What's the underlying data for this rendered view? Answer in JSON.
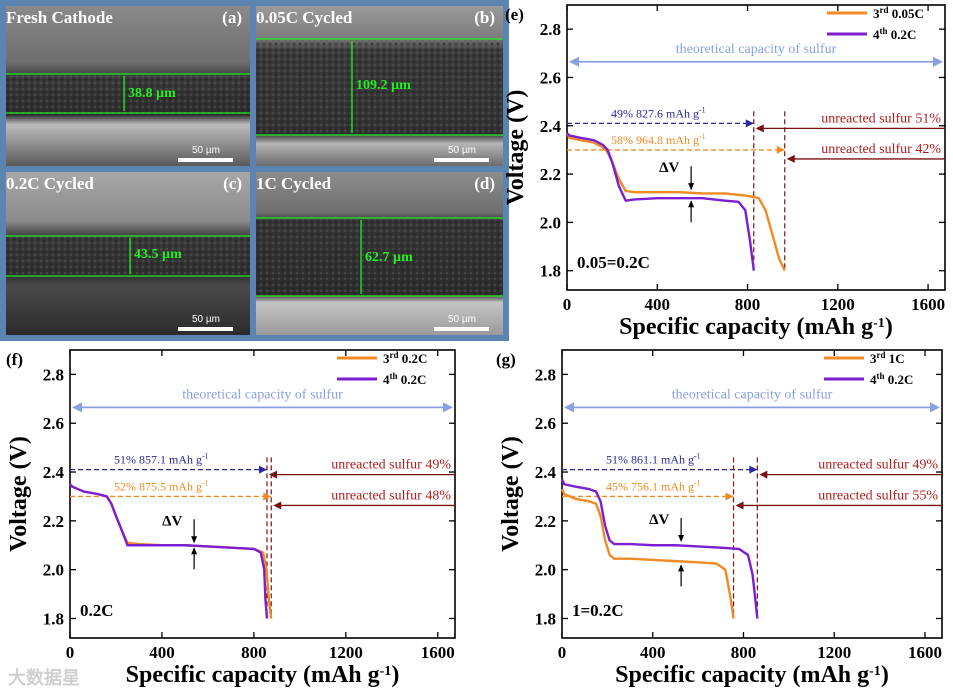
{
  "sem_panels": [
    {
      "id": "a",
      "label": "Fresh Cathode",
      "letter": "(a)",
      "thickness": "38.8 µm",
      "scale": "50 µm"
    },
    {
      "id": "b",
      "label": "0.05C Cycled",
      "letter": "(b)",
      "thickness": "109.2 µm",
      "scale": "50 µm"
    },
    {
      "id": "c",
      "label": "0.2C Cycled",
      "letter": "(c)",
      "thickness": "43.5 µm",
      "scale": "50 µm"
    },
    {
      "id": "d",
      "label": "1C Cycled",
      "letter": "(d)",
      "thickness": "62.7 µm",
      "scale": "50 µm"
    }
  ],
  "watermark": "大数据星",
  "colors": {
    "orange": "#f08a24",
    "purple": "#7b1fd1",
    "lavender": "#8aa0e0",
    "darkred": "#b01c1c",
    "blue": "#2a2aa0",
    "green": "#22ee22"
  },
  "chart_data": [
    {
      "panel": "(e)",
      "type": "line",
      "xlabel": "Specific capacity (mAh g",
      "xlabel_sup": "-1",
      "xlabel_end": ")",
      "ylabel": "Voltage (V)",
      "xlim": [
        0,
        1675
      ],
      "ylim": [
        1.72,
        2.9
      ],
      "xticks": [
        0,
        400,
        800,
        1200,
        1600
      ],
      "yticks": [
        1.8,
        2.0,
        2.2,
        2.4,
        2.6,
        2.8
      ],
      "rate_label": "0.05=0.2C",
      "legend": [
        {
          "cycle": "3",
          "sup": "rd",
          "rate": " 0.05C",
          "color": "#f08a24"
        },
        {
          "cycle": "4",
          "sup": "th",
          "rate": " 0.2C",
          "color": "#7b1fd1"
        }
      ],
      "theoretical_label": "theoretical capacity of sulfur",
      "theoretical_y": 2.665,
      "series": [
        {
          "name": "3rd 0.05C",
          "color": "#f08a24",
          "x": [
            0,
            10,
            60,
            120,
            160,
            180,
            200,
            230,
            260,
            300,
            400,
            500,
            600,
            700,
            800,
            850,
            880,
            910,
            940,
            965
          ],
          "y": [
            2.37,
            2.35,
            2.34,
            2.33,
            2.31,
            2.29,
            2.25,
            2.18,
            2.13,
            2.125,
            2.125,
            2.125,
            2.12,
            2.12,
            2.11,
            2.1,
            2.05,
            1.95,
            1.85,
            1.8
          ]
        },
        {
          "name": "4th 0.2C",
          "color": "#7b1fd1",
          "x": [
            0,
            10,
            60,
            120,
            160,
            180,
            200,
            230,
            260,
            300,
            400,
            500,
            600,
            700,
            760,
            790,
            810,
            828
          ],
          "y": [
            2.37,
            2.36,
            2.35,
            2.34,
            2.32,
            2.3,
            2.25,
            2.15,
            2.09,
            2.095,
            2.1,
            2.1,
            2.1,
            2.09,
            2.085,
            2.05,
            1.93,
            1.8
          ]
        }
      ],
      "ref_lines": [
        {
          "pct": "49%",
          "cap": "827.6 mAh g",
          "sup": "-1",
          "color": "#2a2aa0",
          "y": 2.41,
          "x_end": 827.6,
          "unreacted": "unreacted sulfur  51%"
        },
        {
          "pct": "58%",
          "cap": "964.8 mAh g",
          "sup": "-1",
          "color": "#f08a24",
          "y": 2.3,
          "x_end": 964.8,
          "unreacted": "unreacted sulfur  42%"
        }
      ],
      "delta_v": "ΔV",
      "delta_x": 550,
      "delta_top": 2.125,
      "delta_bot": 2.1
    },
    {
      "panel": "(f)",
      "type": "line",
      "xlabel": "Specific capacity (mAh g",
      "xlabel_sup": "-1",
      "xlabel_end": ")",
      "ylabel": "Voltage (V)",
      "xlim": [
        0,
        1675
      ],
      "ylim": [
        1.72,
        2.9
      ],
      "xticks": [
        0,
        400,
        800,
        1200,
        1600
      ],
      "yticks": [
        1.8,
        2.0,
        2.2,
        2.4,
        2.6,
        2.8
      ],
      "rate_label": "0.2C",
      "legend": [
        {
          "cycle": "3",
          "sup": "rd",
          "rate": " 0.2C",
          "color": "#f08a24"
        },
        {
          "cycle": "4",
          "sup": "th",
          "rate": " 0.2C",
          "color": "#7b1fd1"
        }
      ],
      "theoretical_label": "theoretical capacity of sulfur",
      "theoretical_y": 2.665,
      "series": [
        {
          "name": "3rd 0.2C",
          "color": "#f08a24",
          "x": [
            0,
            10,
            60,
            120,
            160,
            180,
            200,
            230,
            250,
            300,
            400,
            500,
            600,
            700,
            800,
            840,
            855,
            865,
            875
          ],
          "y": [
            2.35,
            2.34,
            2.32,
            2.31,
            2.3,
            2.27,
            2.22,
            2.15,
            2.11,
            2.105,
            2.1,
            2.1,
            2.095,
            2.09,
            2.085,
            2.07,
            2.0,
            1.88,
            1.8
          ]
        },
        {
          "name": "4th 0.2C",
          "color": "#7b1fd1",
          "x": [
            0,
            10,
            60,
            120,
            160,
            180,
            200,
            230,
            250,
            300,
            400,
            500,
            600,
            700,
            800,
            830,
            845,
            850,
            857
          ],
          "y": [
            2.35,
            2.34,
            2.32,
            2.31,
            2.3,
            2.27,
            2.22,
            2.15,
            2.1,
            2.1,
            2.1,
            2.1,
            2.095,
            2.09,
            2.085,
            2.07,
            2.0,
            1.88,
            1.8
          ]
        }
      ],
      "ref_lines": [
        {
          "pct": "51%",
          "cap": "857.1 mAh g",
          "sup": "-1",
          "color": "#2a2aa0",
          "y": 2.41,
          "x_end": 857.1,
          "unreacted": "unreacted sulfur  49%"
        },
        {
          "pct": "52%",
          "cap": "875.5 mAh g",
          "sup": "-1",
          "color": "#f08a24",
          "y": 2.3,
          "x_end": 875.5,
          "unreacted": "unreacted sulfur  48%"
        }
      ],
      "delta_v": "ΔV",
      "delta_x": 540,
      "delta_top": 2.1,
      "delta_bot": 2.1
    },
    {
      "panel": "(g)",
      "type": "line",
      "xlabel": "Specific capacity (mAh g",
      "xlabel_sup": "-1",
      "xlabel_end": ")",
      "ylabel": "Voltage (V)",
      "xlim": [
        0,
        1675
      ],
      "ylim": [
        1.72,
        2.9
      ],
      "xticks": [
        0,
        400,
        800,
        1200,
        1600
      ],
      "yticks": [
        1.8,
        2.0,
        2.2,
        2.4,
        2.6,
        2.8
      ],
      "rate_label": "1=0.2C",
      "legend": [
        {
          "cycle": "3",
          "sup": "rd",
          "rate": " 1C",
          "color": "#f08a24"
        },
        {
          "cycle": "4",
          "sup": "th",
          "rate": " 0.2C",
          "color": "#7b1fd1"
        }
      ],
      "theoretical_label": "theoretical capacity of sulfur",
      "theoretical_y": 2.665,
      "series": [
        {
          "name": "3rd 1C",
          "color": "#f08a24",
          "x": [
            0,
            10,
            60,
            120,
            150,
            170,
            190,
            210,
            230,
            300,
            400,
            500,
            600,
            680,
            720,
            740,
            750,
            756
          ],
          "y": [
            2.33,
            2.31,
            2.29,
            2.28,
            2.27,
            2.22,
            2.12,
            2.06,
            2.045,
            2.045,
            2.04,
            2.035,
            2.03,
            2.025,
            2.0,
            1.9,
            1.84,
            1.8
          ]
        },
        {
          "name": "4th 0.2C",
          "color": "#7b1fd1",
          "x": [
            0,
            10,
            60,
            120,
            150,
            170,
            190,
            210,
            230,
            300,
            400,
            500,
            600,
            700,
            780,
            820,
            840,
            852,
            861
          ],
          "y": [
            2.37,
            2.35,
            2.34,
            2.33,
            2.32,
            2.28,
            2.18,
            2.12,
            2.105,
            2.105,
            2.1,
            2.1,
            2.095,
            2.09,
            2.085,
            2.06,
            1.98,
            1.88,
            1.8
          ]
        }
      ],
      "ref_lines": [
        {
          "pct": "51%",
          "cap": "861.1 mAh g",
          "sup": "-1",
          "color": "#2a2aa0",
          "y": 2.41,
          "x_end": 861.1,
          "unreacted": "unreacted sulfur  49%"
        },
        {
          "pct": "45%",
          "cap": "756.1 mAh g",
          "sup": "-1",
          "color": "#f08a24",
          "y": 2.3,
          "x_end": 756.1,
          "unreacted": "unreacted sulfur  55%"
        }
      ],
      "delta_v": "ΔV",
      "delta_x": 525,
      "delta_top": 2.105,
      "delta_bot": 2.03
    }
  ]
}
